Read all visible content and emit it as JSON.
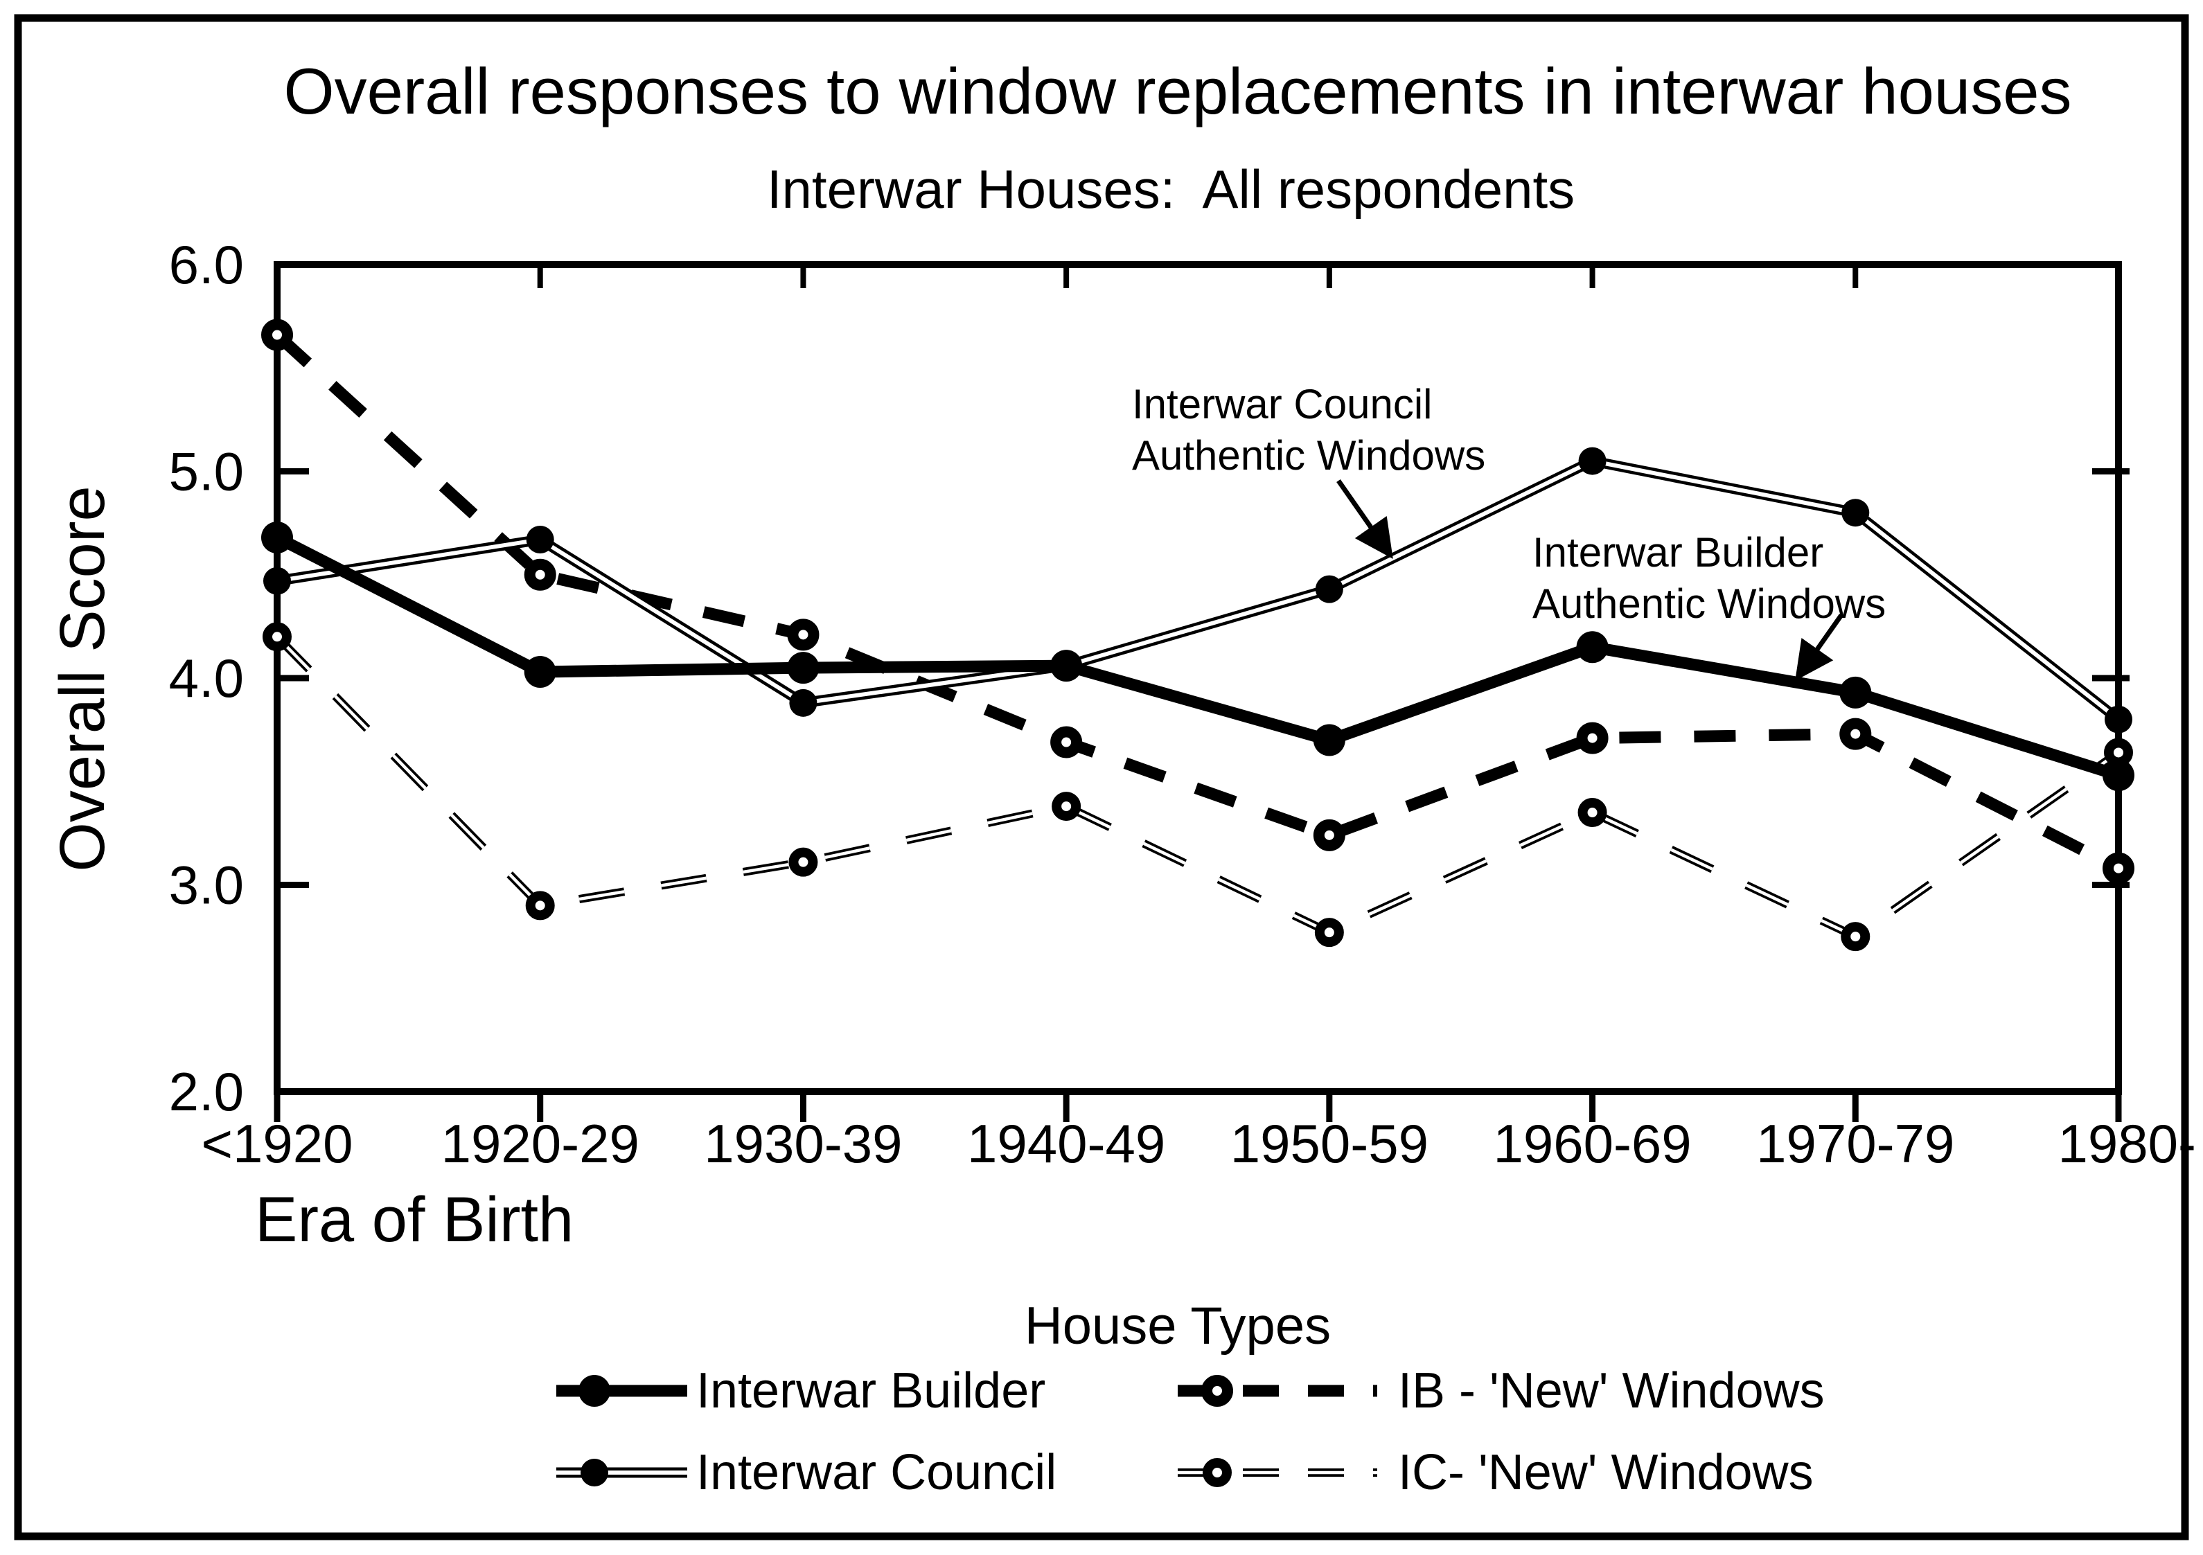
{
  "page": {
    "background": "#ffffff",
    "ink_color": "#000000",
    "border_color": "#000000"
  },
  "chart_data": {
    "type": "line",
    "title": "Overall responses to window replacements in interwar houses",
    "subtitle": "Interwar Houses:  All respondents",
    "xlabel": "Era of Birth",
    "ylabel": "Overall Score",
    "categories": [
      "<1920",
      "1920-29",
      "1930-39",
      "1940-49",
      "1950-59",
      "1960-69",
      "1970-79",
      "1980-"
    ],
    "ylim": [
      2.0,
      6.0
    ],
    "ytick_values": [
      6.0,
      5.0,
      4.0,
      3.0,
      2.0
    ],
    "ytick_labels": [
      "6.0",
      "5.0",
      "4.0",
      "3.0",
      "2.0"
    ],
    "grid": false,
    "legend": {
      "title": "House Types",
      "position": "bottom"
    },
    "series": [
      {
        "name": "Interwar Builder",
        "line": "solid-thick",
        "marker": "filled-circle",
        "values": [
          4.68,
          4.03,
          4.05,
          4.06,
          3.7,
          4.15,
          3.93,
          3.53
        ]
      },
      {
        "name": "Interwar Council",
        "line": "double-solid",
        "marker": "filled-circle",
        "values": [
          4.47,
          4.67,
          3.88,
          4.06,
          4.43,
          5.05,
          4.8,
          3.8
        ]
      },
      {
        "name": "IB - 'New' Windows",
        "line": "dashed-thick",
        "marker": "open-circle",
        "values": [
          5.66,
          4.5,
          4.21,
          3.69,
          3.24,
          3.71,
          3.73,
          3.08
        ]
      },
      {
        "name": "IC- 'New' Windows",
        "line": "double-dashed",
        "marker": "open-circle",
        "values": [
          4.2,
          2.9,
          3.11,
          3.38,
          2.77,
          3.35,
          2.75,
          3.64
        ]
      }
    ],
    "annotations": [
      {
        "lines": [
          "Interwar Council",
          "Authentic Windows"
        ],
        "points_to": "Interwar Council"
      },
      {
        "lines": [
          "Interwar Builder",
          "Authentic Windows"
        ],
        "points_to": "Interwar Builder"
      }
    ]
  }
}
